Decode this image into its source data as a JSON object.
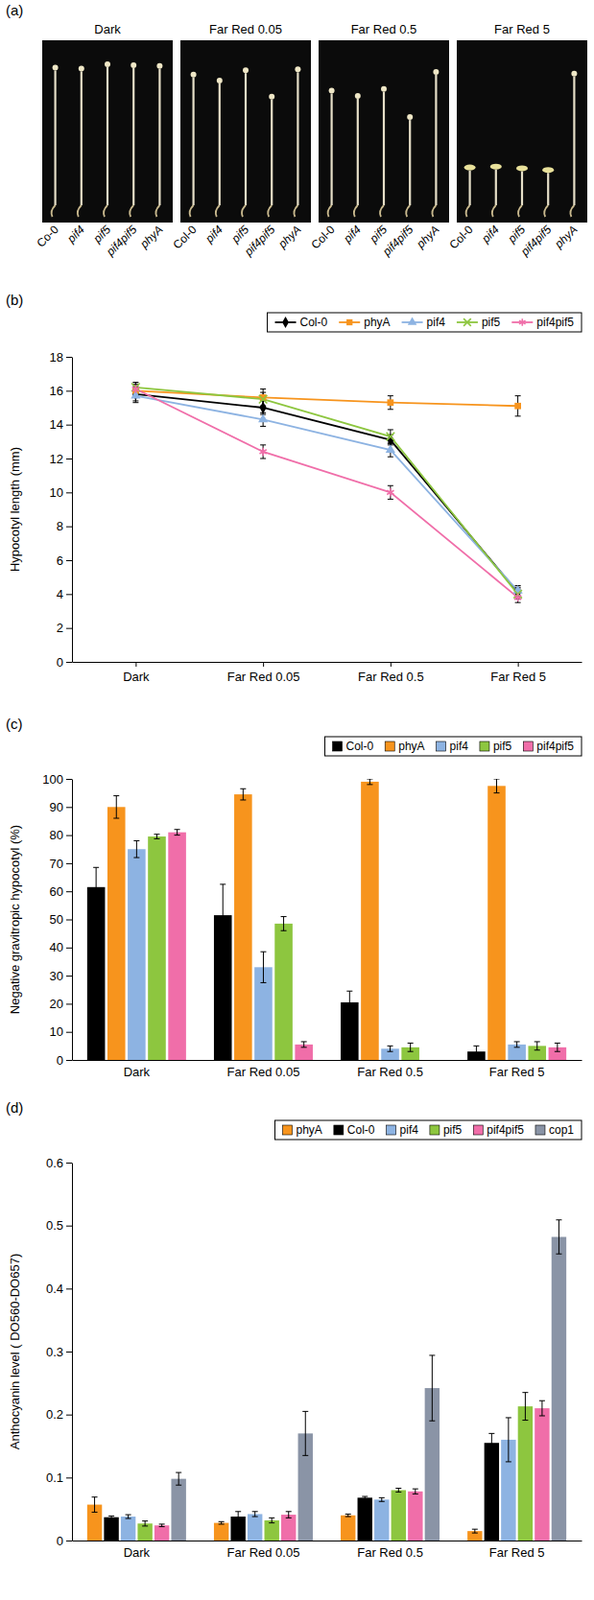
{
  "photo_panel": {
    "panel_label": "(a)",
    "conditions": [
      "Dark",
      "Far Red 0.05",
      "Far Red 0.5",
      "Far Red 5"
    ],
    "genotypes": [
      [
        "Co-0",
        "pif4",
        "pif5",
        "pif4pif5",
        "phyA"
      ],
      [
        "Col-0",
        "pif4",
        "pif5",
        "pif4pif5",
        "phyA"
      ],
      [
        "Col-0",
        "pif4",
        "pif5",
        "pif4pif5",
        "phyA"
      ],
      [
        "Col-0",
        "pif4",
        "pif5",
        "pif4pif5",
        "phyA"
      ]
    ]
  },
  "chart_data": [
    {
      "type": "line",
      "panel_label": "(b)",
      "y_label": "Hypocotyl length (mm)",
      "categories": [
        "Dark",
        "Far Red 0.05",
        "Far Red 0.5",
        "Far Red 5"
      ],
      "ylim": [
        0,
        18
      ],
      "yticks": [
        0,
        2,
        4,
        6,
        8,
        10,
        12,
        14,
        16,
        18
      ],
      "legend": "top",
      "series": [
        {
          "name": "Col-0",
          "color": "#000000",
          "marker": "diamond",
          "values": [
            15.8,
            15.0,
            13.1,
            4.1
          ],
          "errors": [
            0.4,
            0.4,
            0.3,
            0.3
          ]
        },
        {
          "name": "phyA",
          "color": "#f7941d",
          "marker": "square",
          "values": [
            16.0,
            15.6,
            15.3,
            15.1
          ],
          "errors": [
            0.3,
            0.5,
            0.4,
            0.6
          ]
        },
        {
          "name": "pif4",
          "color": "#8db3e2",
          "marker": "triangle",
          "values": [
            15.7,
            14.3,
            12.5,
            4.2
          ],
          "errors": [
            0.4,
            0.4,
            0.4,
            0.3
          ]
        },
        {
          "name": "pif5",
          "color": "#8dc63f",
          "marker": "x",
          "values": [
            16.2,
            15.5,
            13.3,
            4.0
          ],
          "errors": [
            0.3,
            0.4,
            0.4,
            0.3
          ]
        },
        {
          "name": "pif4pif5",
          "color": "#f06ea9",
          "marker": "asterisk",
          "values": [
            16.1,
            12.4,
            10.0,
            3.8
          ],
          "errors": [
            0.3,
            0.4,
            0.4,
            0.3
          ]
        }
      ]
    },
    {
      "type": "bar",
      "panel_label": "(c)",
      "y_label": "Negative gravitropic hypocotyl (%)",
      "categories": [
        "Dark",
        "Far Red 0.05",
        "Far Red 0.5",
        "Far Red 5"
      ],
      "ylim": [
        0,
        100
      ],
      "yticks": [
        0,
        10,
        20,
        30,
        40,
        50,
        60,
        70,
        80,
        90,
        100
      ],
      "legend": "top",
      "series": [
        {
          "name": "Col-0",
          "color": "#000000",
          "values": [
            61.5,
            51.5,
            20.5,
            3
          ],
          "errors": [
            7,
            11,
            4,
            2
          ]
        },
        {
          "name": "phyA",
          "color": "#f7941d",
          "values": [
            90,
            94.5,
            99,
            97.5
          ],
          "errors": [
            4,
            2,
            1,
            2.5
          ]
        },
        {
          "name": "pif4",
          "color": "#8db3e2",
          "values": [
            75,
            33,
            4,
            5.5
          ],
          "errors": [
            3,
            5.5,
            1,
            1
          ]
        },
        {
          "name": "pif5",
          "color": "#8dc63f",
          "values": [
            79.5,
            48.5,
            4.5,
            5
          ],
          "errors": [
            0.8,
            2.5,
            1.5,
            1.5
          ]
        },
        {
          "name": "pif4pif5",
          "color": "#f06ea9",
          "values": [
            81,
            5.5,
            null,
            4.5
          ],
          "errors": [
            1,
            1,
            null,
            1.5
          ]
        }
      ]
    },
    {
      "type": "bar",
      "panel_label": "(d)",
      "y_label": "Anthocyanin level ( DO560-DO657)",
      "categories": [
        "Dark",
        "Far Red 0.05",
        "Far Red 0.5",
        "Far Red 5"
      ],
      "ylim": [
        0,
        0.6
      ],
      "yticks": [
        0,
        0.1,
        0.2,
        0.3,
        0.4,
        0.5,
        0.6
      ],
      "legend": "top",
      "series": [
        {
          "name": "phyA",
          "color": "#f7941d",
          "values": [
            0.057,
            0.028,
            0.04,
            0.015
          ],
          "errors": [
            0.012,
            0.002,
            0.002,
            0.003
          ]
        },
        {
          "name": "Col-0",
          "color": "#000000",
          "values": [
            0.037,
            0.038,
            0.068,
            0.155
          ],
          "errors": [
            0.002,
            0.008,
            0.002,
            0.015
          ]
        },
        {
          "name": "pif4",
          "color": "#8db3e2",
          "values": [
            0.038,
            0.042,
            0.065,
            0.16
          ],
          "errors": [
            0.003,
            0.004,
            0.003,
            0.035
          ]
        },
        {
          "name": "pif5",
          "color": "#8dc63f",
          "values": [
            0.027,
            0.032,
            0.08,
            0.213
          ],
          "errors": [
            0.004,
            0.004,
            0.003,
            0.022
          ]
        },
        {
          "name": "pif4pif5",
          "color": "#f06ea9",
          "values": [
            0.024,
            0.041,
            0.078,
            0.21
          ],
          "errors": [
            0.002,
            0.005,
            0.004,
            0.012
          ]
        },
        {
          "name": "cop1",
          "color": "#8a94a6",
          "values": [
            0.098,
            0.17,
            0.242,
            0.482
          ],
          "errors": [
            0.01,
            0.035,
            0.052,
            0.027
          ]
        }
      ]
    }
  ]
}
